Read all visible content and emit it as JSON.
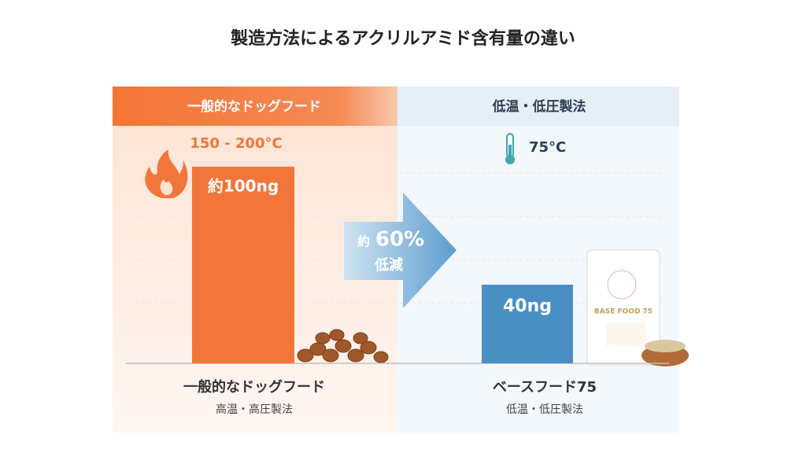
{
  "chart_data": {
    "type": "bar",
    "title": "製造方法によるアクリルアミド含有量の違い",
    "categories": [
      "一般的なドッグフード",
      "ベースフード75"
    ],
    "values": [
      100,
      40
    ],
    "value_labels": [
      "約100ng",
      "40ng"
    ],
    "panel_headers": [
      "一般的なドッグフード",
      "低温・低圧製法"
    ],
    "temperatures": [
      "150 - 200°C",
      "75°C"
    ],
    "methods": [
      "高温・高圧製法",
      "低温・低圧製法"
    ],
    "arrow_text": [
      "約",
      "60%",
      "低減"
    ],
    "product_label": "BASE FOOD 75",
    "colors": [
      "#f2763a",
      "#4a8fc4"
    ],
    "ylim": [
      0,
      110
    ]
  }
}
